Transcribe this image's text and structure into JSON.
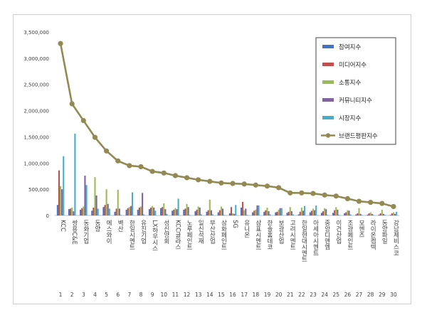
{
  "chart_data": {
    "type": "bar",
    "title": "",
    "xlabel": "",
    "ylabel": "",
    "ylim": [
      0,
      3500000
    ],
    "yticks": [
      0,
      500000,
      1000000,
      1500000,
      2000000,
      2500000,
      3000000,
      3500000
    ],
    "ytick_labels": [
      "0",
      "500,000",
      "1,000,000",
      "1,500,000",
      "2,000,000",
      "2,500,000",
      "3,000,000",
      "3,500,000"
    ],
    "grid": false,
    "legend_position": "top-right",
    "ranks": [
      "1",
      "2",
      "3",
      "4",
      "5",
      "6",
      "7",
      "8",
      "9",
      "10",
      "11",
      "12",
      "13",
      "14",
      "15",
      "16",
      "17",
      "18",
      "19",
      "20",
      "21",
      "22",
      "23",
      "24",
      "25",
      "26",
      "27",
      "28",
      "29",
      "30"
    ],
    "categories": [
      "KCC",
      "쌍용C&E",
      "동화기업",
      "동양",
      "에스와이",
      "벽산",
      "한일시멘트",
      "유진기업",
      "LX하우시스",
      "성신양회",
      "KCC글라스",
      "노루페인트",
      "일신석재",
      "부산산업",
      "삼화페인트",
      "SG",
      "유니온",
      "삼표시멘트",
      "한솔홈데코",
      "보광산업",
      "고려시멘트",
      "한일현대시멘트",
      "아세아시멘트",
      "중앙디앤엠",
      "이건산업",
      "조광페인트",
      "모헨즈",
      "라이온켐텍",
      "동양파일",
      "강남제비스코"
    ],
    "series": [
      {
        "name": "참여지수",
        "type": "bar",
        "color": "#4472C4",
        "values": [
          200000,
          120000,
          110000,
          90000,
          160000,
          70000,
          110000,
          110000,
          120000,
          140000,
          90000,
          110000,
          80000,
          70000,
          60000,
          40000,
          150000,
          60000,
          70000,
          60000,
          50000,
          20000,
          60000,
          50000,
          50000,
          40000,
          20000,
          15000,
          15000,
          10000
        ]
      },
      {
        "name": "미디어지수",
        "type": "bar",
        "color": "#C0504D",
        "values": [
          860000,
          130000,
          140000,
          150000,
          200000,
          130000,
          140000,
          150000,
          150000,
          160000,
          110000,
          130000,
          110000,
          100000,
          100000,
          160000,
          260000,
          90000,
          100000,
          70000,
          70000,
          70000,
          90000,
          80000,
          100000,
          60000,
          40000,
          40000,
          40000,
          40000
        ]
      },
      {
        "name": "소통지수",
        "type": "bar",
        "color": "#9BBB59",
        "values": [
          560000,
          150000,
          170000,
          730000,
          500000,
          490000,
          160000,
          170000,
          180000,
          230000,
          140000,
          220000,
          170000,
          300000,
          170000,
          40000,
          100000,
          110000,
          150000,
          110000,
          160000,
          150000,
          130000,
          140000,
          160000,
          100000,
          140000,
          60000,
          110000,
          60000
        ]
      },
      {
        "name": "커뮤니티지수",
        "type": "bar",
        "color": "#8064A2",
        "values": [
          500000,
          80000,
          760000,
          380000,
          220000,
          130000,
          180000,
          430000,
          150000,
          120000,
          120000,
          160000,
          150000,
          100000,
          130000,
          30000,
          130000,
          190000,
          80000,
          140000,
          80000,
          90000,
          100000,
          120000,
          110000,
          90000,
          30000,
          30000,
          30000,
          30000
        ]
      },
      {
        "name": "시장지수",
        "type": "bar",
        "color": "#4BACC6",
        "values": [
          1130000,
          1560000,
          580000,
          130000,
          130000,
          10000,
          440000,
          20000,
          90000,
          30000,
          320000,
          10000,
          20000,
          20000,
          10000,
          200000,
          10000,
          190000,
          20000,
          140000,
          20000,
          180000,
          190000,
          10000,
          10000,
          20000,
          10000,
          10000,
          10000,
          70000
        ]
      },
      {
        "name": "브랜드평판지수",
        "type": "line",
        "color": "#938953",
        "values": [
          3280000,
          2130000,
          1810000,
          1490000,
          1230000,
          1040000,
          950000,
          930000,
          840000,
          810000,
          760000,
          720000,
          680000,
          650000,
          620000,
          610000,
          600000,
          580000,
          560000,
          530000,
          430000,
          430000,
          420000,
          390000,
          370000,
          320000,
          270000,
          250000,
          230000,
          170000
        ]
      }
    ]
  }
}
